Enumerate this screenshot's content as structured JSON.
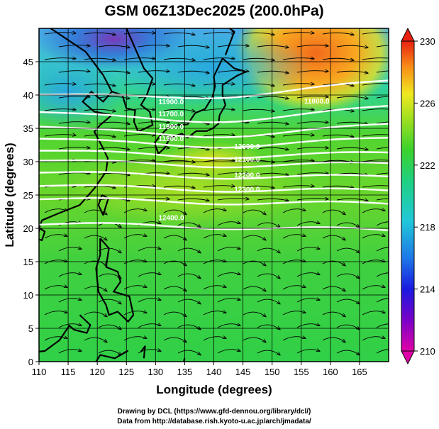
{
  "chart_data": {
    "type": "heatmap",
    "title": "GSM 06Z13Dec2025 (200.0hPa)",
    "xlabel": "Longitude (degrees)",
    "ylabel": "Latitude  (degrees)",
    "xlim": [
      110,
      170
    ],
    "ylim": [
      0,
      50
    ],
    "xticks": [
      "110",
      "115",
      "120",
      "125",
      "130",
      "135",
      "140",
      "145",
      "150",
      "155",
      "160",
      "165"
    ],
    "yticks": [
      "0",
      "5",
      "10",
      "15",
      "20",
      "25",
      "30",
      "35",
      "40",
      "45"
    ],
    "grid": true,
    "colorbar": {
      "range": [
        210,
        230
      ],
      "ticks": [
        "210",
        "214",
        "218",
        "222",
        "226",
        "230"
      ]
    },
    "contour_labels": [
      {
        "text": "11900.0",
        "lon": 130.5,
        "lat": 38.6
      },
      {
        "text": "11800.0",
        "lon": 155.5,
        "lat": 38.7
      },
      {
        "text": "11700.0",
        "lon": 130.5,
        "lat": 36.8
      },
      {
        "text": "11900.0",
        "lon": 130.5,
        "lat": 34.9
      },
      {
        "text": "11900.0",
        "lon": 130.5,
        "lat": 33.1
      },
      {
        "text": "12000.0",
        "lon": 143.5,
        "lat": 31.9
      },
      {
        "text": "12100.0",
        "lon": 143.5,
        "lat": 30.0
      },
      {
        "text": "12200.0",
        "lon": 143.5,
        "lat": 27.6
      },
      {
        "text": "12300.0",
        "lon": 143.5,
        "lat": 25.5
      },
      {
        "text": "12400.0",
        "lon": 130.5,
        "lat": 21.2
      }
    ]
  },
  "credits": {
    "line1": "Drawing by DCL (https://www.gfd-dennou.org/library/dcl/)",
    "line2": "Data from http://database.rish.kyoto-u.ac.jp/arch/jmadata/"
  },
  "colors": {
    "contour": "#ffffff",
    "coast": "#000000",
    "grid": "#000000"
  }
}
